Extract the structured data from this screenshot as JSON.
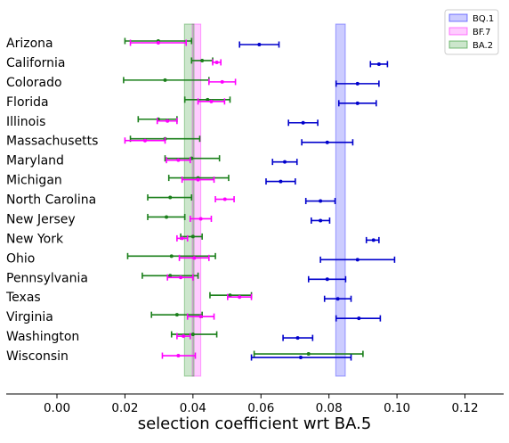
{
  "chart_data": {
    "type": "errorbar",
    "title": "",
    "xlabel": "selection coefficient wrt BA.5",
    "ylabel": "",
    "xlim": [
      -0.015,
      0.13
    ],
    "xticks": [
      0.0,
      0.02,
      0.04,
      0.06,
      0.08,
      0.1,
      0.12
    ],
    "xtick_labels": [
      "0.00",
      "0.02",
      "0.04",
      "0.06",
      "0.08",
      "0.10",
      "0.12"
    ],
    "categories": [
      "Arizona",
      "California",
      "Colorado",
      "Florida",
      "Illinois",
      "Massachusetts",
      "Maryland",
      "Michigan",
      "North Carolina",
      "New Jersey",
      "New York",
      "Ohio",
      "Pennsylvania",
      "Texas",
      "Virginia",
      "Washington",
      "Wisconsin"
    ],
    "legend": {
      "position": "top-right",
      "entries": [
        "BQ.1",
        "BF.7",
        "BA.2"
      ]
    },
    "colors": {
      "BQ.1": "#0000cc",
      "BF.7": "#ff00ff",
      "BA.2": "#1a7f1a"
    },
    "bands": [
      {
        "name": "BQ.1",
        "low": 0.082,
        "high": 0.0848,
        "color": "#0000ff"
      },
      {
        "name": "BF.7",
        "low": 0.0398,
        "high": 0.0423,
        "color": "#ff00ff"
      },
      {
        "name": "BA.2",
        "low": 0.0375,
        "high": 0.0403,
        "color": "#008000"
      }
    ],
    "series": [
      {
        "name": "BQ.1",
        "values": [
          {
            "state": "Arizona",
            "center": 0.0595,
            "low": 0.0537,
            "high": 0.0653
          },
          {
            "state": "California",
            "center": 0.0947,
            "low": 0.0922,
            "high": 0.0972
          },
          {
            "state": "Colorado",
            "center": 0.0884,
            "low": 0.0821,
            "high": 0.0947
          },
          {
            "state": "Florida",
            "center": 0.0884,
            "low": 0.0829,
            "high": 0.0939
          },
          {
            "state": "Illinois",
            "center": 0.0724,
            "low": 0.0681,
            "high": 0.0767
          },
          {
            "state": "Massachusetts",
            "center": 0.0795,
            "low": 0.072,
            "high": 0.087
          },
          {
            "state": "Maryland",
            "center": 0.067,
            "low": 0.0634,
            "high": 0.0706
          },
          {
            "state": "Michigan",
            "center": 0.0658,
            "low": 0.0615,
            "high": 0.0701
          },
          {
            "state": "North Carolina",
            "center": 0.0775,
            "low": 0.0732,
            "high": 0.0818
          },
          {
            "state": "New Jersey",
            "center": 0.0775,
            "low": 0.0748,
            "high": 0.0802
          },
          {
            "state": "New York",
            "center": 0.0931,
            "low": 0.091,
            "high": 0.0947
          },
          {
            "state": "Ohio",
            "center": 0.0884,
            "low": 0.0775,
            "high": 0.0993
          },
          {
            "state": "Pennsylvania",
            "center": 0.0795,
            "low": 0.074,
            "high": 0.0849
          },
          {
            "state": "Texas",
            "center": 0.0826,
            "low": 0.0787,
            "high": 0.0865
          },
          {
            "state": "Virginia",
            "center": 0.0888,
            "low": 0.0821,
            "high": 0.0951
          },
          {
            "state": "Washington",
            "center": 0.0708,
            "low": 0.0665,
            "high": 0.0752
          },
          {
            "state": "Wisconsin",
            "center": 0.0717,
            "low": 0.0572,
            "high": 0.0865
          }
        ]
      },
      {
        "name": "BF.7",
        "values": [
          {
            "state": "Arizona",
            "center": 0.0298,
            "low": 0.0216,
            "high": 0.038
          },
          {
            "state": "California",
            "center": 0.047,
            "low": 0.0458,
            "high": 0.0482
          },
          {
            "state": "Colorado",
            "center": 0.0486,
            "low": 0.0447,
            "high": 0.0525
          },
          {
            "state": "Florida",
            "center": 0.0454,
            "low": 0.0415,
            "high": 0.0493
          },
          {
            "state": "Illinois",
            "center": 0.0325,
            "low": 0.0295,
            "high": 0.0353
          },
          {
            "state": "Massachusetts",
            "center": 0.0259,
            "low": 0.02,
            "high": 0.0318
          },
          {
            "state": "Maryland",
            "center": 0.0357,
            "low": 0.0322,
            "high": 0.0392
          },
          {
            "state": "Michigan",
            "center": 0.0415,
            "low": 0.0368,
            "high": 0.0462
          },
          {
            "state": "North Carolina",
            "center": 0.0494,
            "low": 0.0466,
            "high": 0.0521
          },
          {
            "state": "New Jersey",
            "center": 0.0423,
            "low": 0.0392,
            "high": 0.0454
          },
          {
            "state": "New York",
            "center": 0.0368,
            "low": 0.0353,
            "high": 0.0384
          },
          {
            "state": "Ohio",
            "center": 0.0404,
            "low": 0.036,
            "high": 0.0447
          },
          {
            "state": "Pennsylvania",
            "center": 0.0364,
            "low": 0.0325,
            "high": 0.04
          },
          {
            "state": "Texas",
            "center": 0.0537,
            "low": 0.0502,
            "high": 0.0572
          },
          {
            "state": "Virginia",
            "center": 0.0423,
            "low": 0.0384,
            "high": 0.0462
          },
          {
            "state": "Washington",
            "center": 0.0372,
            "low": 0.0353,
            "high": 0.0392
          },
          {
            "state": "Wisconsin",
            "center": 0.0357,
            "low": 0.031,
            "high": 0.0407
          }
        ]
      },
      {
        "name": "BA.2",
        "values": [
          {
            "state": "Arizona",
            "center": 0.0298,
            "low": 0.02,
            "high": 0.0396
          },
          {
            "state": "California",
            "center": 0.0427,
            "low": 0.0396,
            "high": 0.0458
          },
          {
            "state": "Colorado",
            "center": 0.0318,
            "low": 0.0196,
            "high": 0.0447
          },
          {
            "state": "Florida",
            "center": 0.0443,
            "low": 0.0376,
            "high": 0.0509
          },
          {
            "state": "Illinois",
            "center": 0.0298,
            "low": 0.0239,
            "high": 0.0353
          },
          {
            "state": "Massachusetts",
            "center": 0.0318,
            "low": 0.0216,
            "high": 0.042
          },
          {
            "state": "Maryland",
            "center": 0.0396,
            "low": 0.0318,
            "high": 0.0478
          },
          {
            "state": "Michigan",
            "center": 0.0415,
            "low": 0.0329,
            "high": 0.0505
          },
          {
            "state": "North Carolina",
            "center": 0.0333,
            "low": 0.0267,
            "high": 0.0396
          },
          {
            "state": "New Jersey",
            "center": 0.0322,
            "low": 0.0267,
            "high": 0.0376
          },
          {
            "state": "New York",
            "center": 0.04,
            "low": 0.0364,
            "high": 0.0427
          },
          {
            "state": "Ohio",
            "center": 0.0337,
            "low": 0.0208,
            "high": 0.0466
          },
          {
            "state": "Pennsylvania",
            "center": 0.0333,
            "low": 0.0251,
            "high": 0.0415
          },
          {
            "state": "Texas",
            "center": 0.0509,
            "low": 0.045,
            "high": 0.0572
          },
          {
            "state": "Virginia",
            "center": 0.0353,
            "low": 0.0278,
            "high": 0.0427
          },
          {
            "state": "Washington",
            "center": 0.04,
            "low": 0.0337,
            "high": 0.047
          },
          {
            "state": "Wisconsin",
            "center": 0.074,
            "low": 0.058,
            "high": 0.09
          }
        ]
      }
    ]
  }
}
